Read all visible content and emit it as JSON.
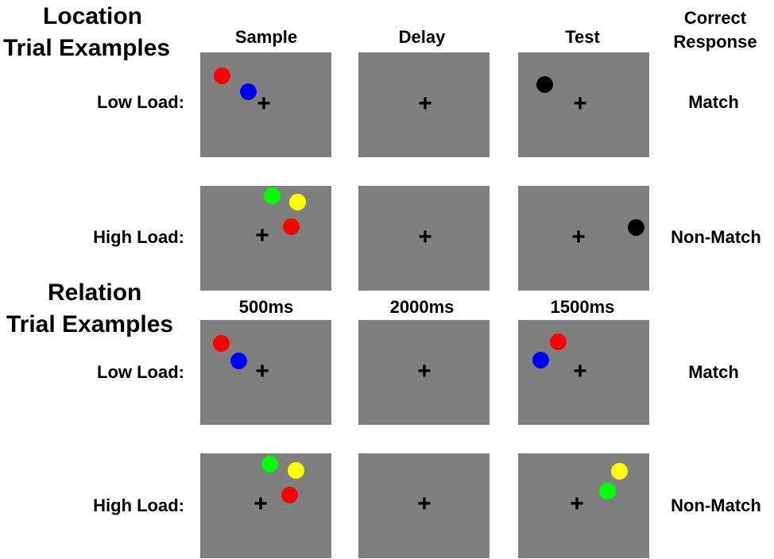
{
  "headings": {
    "location_line1": "Location",
    "location_line2": "Trial Examples",
    "relation_line1": "Relation",
    "relation_line2": "Trial Examples"
  },
  "columns": {
    "sample": "Sample",
    "delay": "Delay",
    "test": "Test",
    "correct_line1": "Correct",
    "correct_line2": "Response"
  },
  "durations": {
    "sample": "500ms",
    "delay": "2000ms",
    "test": "1500ms"
  },
  "rows": [
    {
      "load_label": "Low Load:",
      "response": "Match"
    },
    {
      "load_label": "High Load:",
      "response": "Non-Match"
    },
    {
      "load_label": "Low Load:",
      "response": "Match"
    },
    {
      "load_label": "High Load:",
      "response": "Non-Match"
    }
  ],
  "fixation_glyph": "+",
  "colors": {
    "panel": "#7f7f7f",
    "red": "#ff0000",
    "blue": "#0000ff",
    "green": "#00ff00",
    "yellow": "#ffff00",
    "black": "#000000"
  }
}
